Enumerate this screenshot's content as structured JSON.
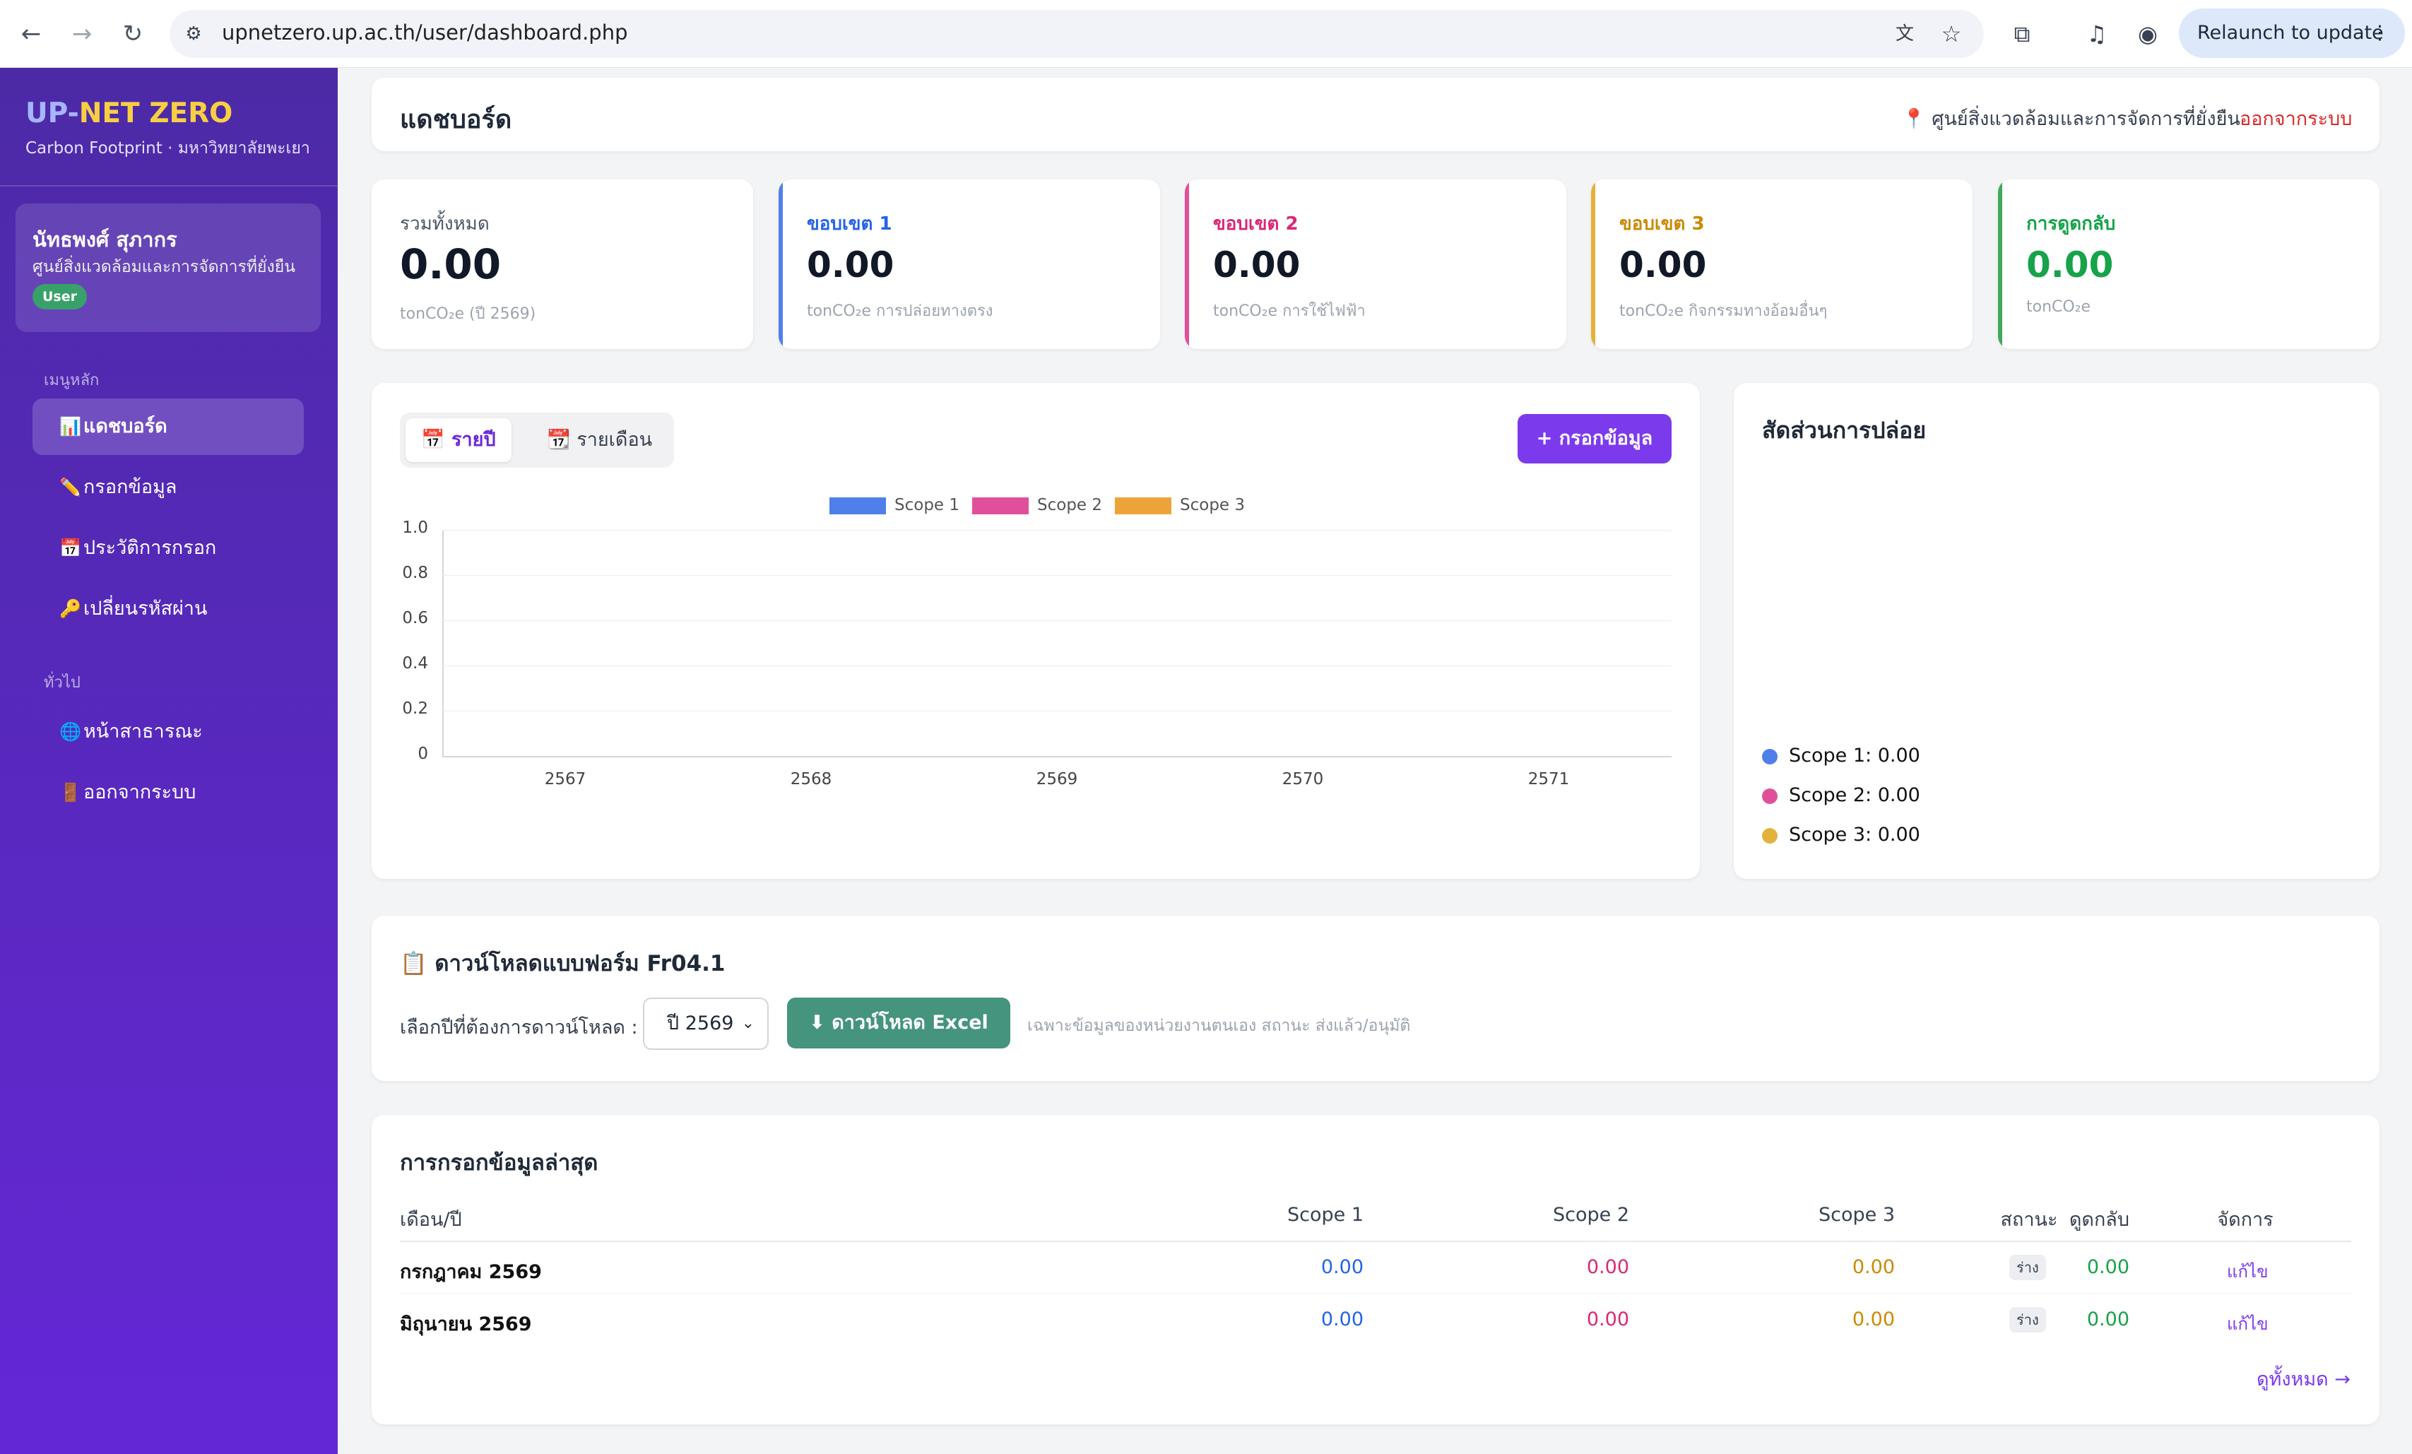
{
  "browser": {
    "url": "upnetzero.up.ac.th/user/dashboard.php",
    "relaunch_label": "Relaunch to update"
  },
  "sidebar": {
    "logo_up": "UP-",
    "logo_rest": "NET ZERO",
    "logo_sub": "Carbon Footprint · มหาวิทยาลัยพะเยา",
    "user": {
      "name": "นัทธพงศ์ สุภากร",
      "org": "ศูนย์สิ่งแวดล้อมและการจัดการที่ยั่งยืน",
      "role": "User"
    },
    "main_heading": "เมนูหลัก",
    "main_items": [
      {
        "icon": "📊",
        "label": "แดชบอร์ด"
      },
      {
        "icon": "✏️",
        "label": "กรอกข้อมูล"
      },
      {
        "icon": "📅",
        "label": "ประวัติการกรอก"
      },
      {
        "icon": "🔑",
        "label": "เปลี่ยนรหัสผ่าน"
      }
    ],
    "general_heading": "ทั่วไป",
    "general_items": [
      {
        "icon": "🌐",
        "label": "หน้าสาธารณะ"
      },
      {
        "icon": "🚪",
        "label": "ออกจากระบบ"
      }
    ]
  },
  "header": {
    "title": "แดชบอร์ด",
    "location": "📍 ศูนย์สิ่งแวดล้อมและการจัดการที่ยั่งยืน",
    "logout": "ออกจากระบบ"
  },
  "stats": [
    {
      "label": "รวมทั้งหมด",
      "value": "0.00",
      "unit": "tonCO₂e (ปี 2569)",
      "color": "#374151"
    },
    {
      "label": "ขอบเขต 1",
      "value": "0.00",
      "unit": "tonCO₂e การปล่อยทางตรง",
      "color": "#2563eb"
    },
    {
      "label": "ขอบเขต 2",
      "value": "0.00",
      "unit": "tonCO₂e การใช้ไฟฟ้า",
      "color": "#db2777"
    },
    {
      "label": "ขอบเขต 3",
      "value": "0.00",
      "unit": "tonCO₂e กิจกรรมทางอ้อมอื่นๆ",
      "color": "#ca8a04"
    },
    {
      "label": "การดูดกลับ",
      "value": "0.00",
      "unit": "tonCO₂e",
      "color": "#16a34a"
    }
  ],
  "chart": {
    "tab_year": "📅 รายปี",
    "tab_month": "📆 รายเดือน",
    "add_button": "+ กรอกข้อมูล"
  },
  "chart_data": {
    "type": "bar",
    "categories": [
      "2567",
      "2568",
      "2569",
      "2570",
      "2571"
    ],
    "series": [
      {
        "name": "Scope 1",
        "values": [
          0,
          0,
          0,
          0,
          0
        ],
        "color": "#4f7fe8"
      },
      {
        "name": "Scope 2",
        "values": [
          0,
          0,
          0,
          0,
          0
        ],
        "color": "#e0509a"
      },
      {
        "name": "Scope 3",
        "values": [
          0,
          0,
          0,
          0,
          0
        ],
        "color": "#eca43a"
      }
    ],
    "yticks": [
      "1.0",
      "0.8",
      "0.6",
      "0.4",
      "0.2",
      "0"
    ],
    "ylim": [
      0,
      1.0
    ],
    "grid": true,
    "legend": "top-center"
  },
  "pie": {
    "title": "สัดส่วนการปล่อย",
    "items": [
      {
        "label": "Scope 1: 0.00",
        "color": "#4f7fe8"
      },
      {
        "label": "Scope 2: 0.00",
        "color": "#e0509a"
      },
      {
        "label": "Scope 3: 0.00",
        "color": "#e2b23a"
      }
    ]
  },
  "download": {
    "title": "📋 ดาวน์โหลดแบบฟอร์ม Fr04.1",
    "label": "เลือกปีที่ต้องการดาวน์โหลด :",
    "year": "ปี 2569",
    "button": "⬇ ดาวน์โหลด Excel",
    "note": "เฉพาะข้อมูลของหน่วยงานตนเอง สถานะ ส่งแล้ว/อนุมัติ"
  },
  "recent": {
    "title": "การกรอกข้อมูลล่าสุด",
    "headers": [
      "เดือน/ปี",
      "Scope 1",
      "Scope 2",
      "Scope 3",
      "ดูดกลับ",
      "สถานะ",
      "จัดการ"
    ],
    "rows": [
      {
        "month": "กรกฎาคม 2569",
        "s1": "0.00",
        "s2": "0.00",
        "s3": "0.00",
        "removal": "0.00",
        "status": "ร่าง",
        "action": "แก้ไข"
      },
      {
        "month": "มิถุนายน 2569",
        "s1": "0.00",
        "s2": "0.00",
        "s3": "0.00",
        "removal": "0.00",
        "status": "ร่าง",
        "action": "แก้ไข"
      }
    ],
    "view_all": "ดูทั้งหมด →"
  }
}
